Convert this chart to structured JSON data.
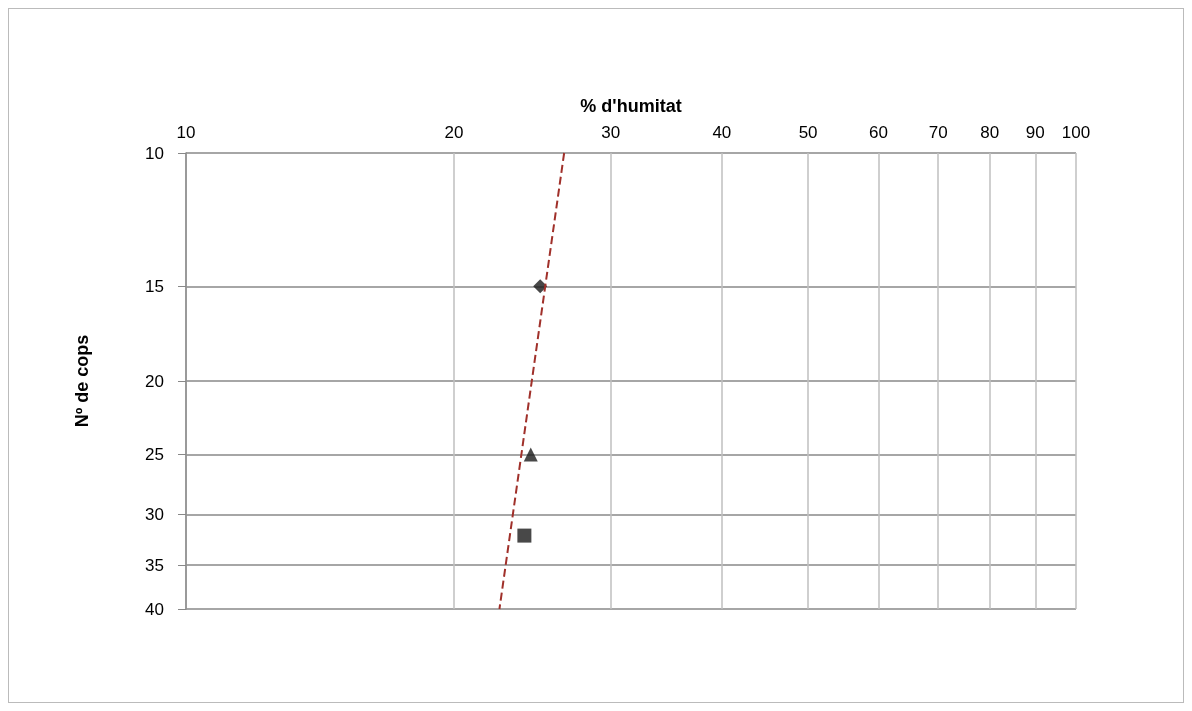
{
  "chart_data": {
    "type": "scatter",
    "xlabel": "% d'humitat",
    "ylabel": "Nº de cops",
    "log": "xy",
    "grid": true,
    "xlim": [
      10,
      100
    ],
    "xticks": [
      10,
      20,
      30,
      40,
      50,
      60,
      70,
      80,
      90,
      100
    ],
    "ylim": [
      40,
      10
    ],
    "yticks": [
      10,
      15,
      20,
      25,
      30,
      35,
      40
    ],
    "series": [
      {
        "color": "#1a1a1a",
        "marker": "diamond",
        "x": [
          25.0
        ],
        "values": [
          15
        ]
      },
      {
        "color": "#1a1a1a",
        "marker": "triangle",
        "x": [
          24.4
        ],
        "values": [
          25
        ]
      },
      {
        "color": "#1a1a1a",
        "marker": "square",
        "x": [
          24.0
        ],
        "values": [
          32
        ]
      },
      {
        "type": "line",
        "color": "#a0302a",
        "line_style": "dashed",
        "marker": "none",
        "x": [
          26.6,
          22.5
        ],
        "values": [
          10,
          40
        ]
      }
    ]
  }
}
